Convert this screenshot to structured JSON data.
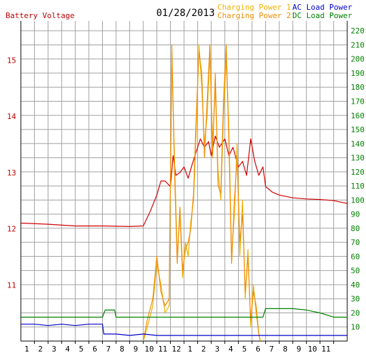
{
  "header": {
    "left_axis_title": "Battery Voltage",
    "date": "01/28/2013",
    "legend": [
      {
        "label": "Charging Power 1",
        "color": "#f0b000"
      },
      {
        "label": "Charging Power 2",
        "color": "#f08c00"
      },
      {
        "label": "AC Load Power",
        "color": "#0000c8"
      },
      {
        "label": "DC Load Power",
        "color": "#008000"
      }
    ]
  },
  "colors": {
    "battery_voltage": "#d00000",
    "left_axis_text": "#c00000",
    "right_axis_text": "#008000",
    "grid": "#a0a0a0",
    "axis": "#000000"
  },
  "chart_data": {
    "type": "line",
    "title": "",
    "date": "01/28/2013",
    "grid": true,
    "x_ticks": [
      "1",
      "2",
      "3",
      "4",
      "5",
      "6",
      "7",
      "8",
      "9",
      "10",
      "11",
      "12",
      "1",
      "2",
      "3",
      "4",
      "5",
      "6",
      "7",
      "8",
      "9",
      "10",
      "11"
    ],
    "x_range_hours": [
      0,
      24
    ],
    "y_left": {
      "label": "Battery Voltage",
      "ticks": [
        11,
        12,
        13,
        14,
        15
      ],
      "range": [
        10,
        15.7
      ]
    },
    "y_right": {
      "label": "",
      "ticks": [
        10,
        20,
        30,
        40,
        50,
        60,
        70,
        80,
        90,
        100,
        110,
        120,
        130,
        140,
        150,
        160,
        170,
        180,
        190,
        200,
        210,
        220
      ],
      "range": [
        0,
        227
      ]
    },
    "series": [
      {
        "name": "Battery Voltage",
        "axis": "left",
        "x": [
          0,
          2,
          4,
          6,
          8,
          9,
          9.5,
          10,
          10.3,
          10.6,
          11,
          11.2,
          11.4,
          11.7,
          12,
          12.3,
          12.6,
          13,
          13.2,
          13.5,
          13.8,
          14,
          14.3,
          14.6,
          15,
          15.3,
          15.6,
          16,
          16.3,
          16.6,
          16.9,
          17.2,
          17.5,
          17.8,
          18,
          18.5,
          19,
          20,
          21,
          22,
          23,
          24
        ],
        "y": [
          12.1,
          12.08,
          12.05,
          12.05,
          12.04,
          12.05,
          12.3,
          12.6,
          12.85,
          12.85,
          12.75,
          13.3,
          12.95,
          13.0,
          13.1,
          12.9,
          13.15,
          13.45,
          13.6,
          13.45,
          13.55,
          13.3,
          13.65,
          13.45,
          13.6,
          13.3,
          13.45,
          13.1,
          13.2,
          12.95,
          13.6,
          13.2,
          12.95,
          13.1,
          12.75,
          12.65,
          12.6,
          12.55,
          12.53,
          12.52,
          12.5,
          12.45
        ]
      },
      {
        "name": "Charging Power 1",
        "axis": "right",
        "x": [
          9,
          9.3,
          9.7,
          10,
          10.3,
          10.6,
          10.9,
          11.1,
          11.3,
          11.5,
          11.7,
          11.9,
          12.1,
          12.3,
          12.5,
          12.7,
          12.9,
          13.1,
          13.3,
          13.5,
          13.7,
          13.9,
          14.1,
          14.3,
          14.5,
          14.7,
          14.9,
          15.1,
          15.3,
          15.5,
          15.7,
          15.9,
          16.1,
          16.3,
          16.5,
          16.7,
          16.9,
          17.1,
          17.3,
          17.5,
          17.6
        ],
        "y": [
          0,
          10,
          25,
          55,
          40,
          20,
          25,
          200,
          130,
          60,
          90,
          45,
          70,
          60,
          85,
          100,
          150,
          210,
          180,
          140,
          160,
          205,
          140,
          180,
          120,
          100,
          160,
          200,
          150,
          60,
          90,
          140,
          60,
          100,
          30,
          65,
          10,
          40,
          20,
          5,
          0
        ]
      },
      {
        "name": "Charging Power 2",
        "axis": "right",
        "x": [
          9,
          9.3,
          9.7,
          10,
          10.3,
          10.6,
          10.9,
          11.1,
          11.3,
          11.5,
          11.7,
          11.9,
          12.1,
          12.3,
          12.5,
          12.7,
          12.9,
          13.1,
          13.3,
          13.5,
          13.7,
          13.9,
          14.1,
          14.3,
          14.5,
          14.7,
          14.9,
          15.1,
          15.3,
          15.5,
          15.7,
          15.9,
          16.1,
          16.3,
          16.5,
          16.7,
          16.9,
          17.1,
          17.3,
          17.5,
          17.6
        ],
        "y": [
          0,
          15,
          30,
          60,
          35,
          25,
          30,
          210,
          120,
          55,
          95,
          50,
          65,
          70,
          80,
          105,
          160,
          205,
          190,
          130,
          170,
          210,
          130,
          190,
          110,
          105,
          170,
          210,
          140,
          55,
          100,
          130,
          70,
          90,
          35,
          60,
          15,
          35,
          25,
          5,
          0
        ]
      },
      {
        "name": "AC Load Power",
        "axis": "right",
        "x": [
          0,
          1,
          2,
          3,
          4,
          5,
          6,
          6.1,
          7,
          8,
          9,
          10,
          11,
          12,
          14,
          16,
          18,
          20,
          22,
          24
        ],
        "y": [
          12,
          12,
          11,
          12,
          11,
          12,
          12,
          5,
          5,
          4,
          5,
          4,
          4,
          4,
          4,
          4,
          4,
          4,
          4,
          4
        ]
      },
      {
        "name": "DC Load Power",
        "axis": "right",
        "x": [
          0,
          2,
          4,
          6,
          6.2,
          6.9,
          7,
          9,
          10,
          12,
          14,
          16,
          17.8,
          18,
          20,
          21,
          22,
          23,
          24
        ],
        "y": [
          17,
          17,
          17,
          17,
          22,
          22,
          17,
          17,
          17,
          17,
          17,
          17,
          17,
          23,
          23,
          22,
          20,
          17,
          17
        ]
      }
    ]
  }
}
